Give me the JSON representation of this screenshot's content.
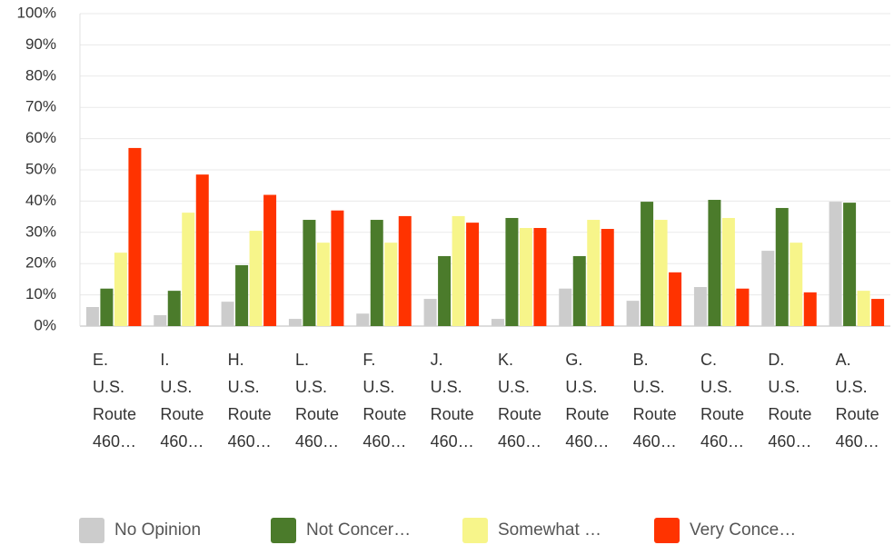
{
  "chart_data": {
    "type": "bar",
    "categories": [
      "E. U.S. Route 460…",
      "I. U.S. Route 460…",
      "H. U.S. Route 460…",
      "L. U.S. Route 460…",
      "F. U.S. Route 460…",
      "J. U.S. Route 460…",
      "K. U.S. Route 460…",
      "G. U.S. Route 460…",
      "B. U.S. Route 460…",
      "C. U.S. Route 460…",
      "D. U.S. Route 460…",
      "A. U.S. Route 460…"
    ],
    "series": [
      {
        "name": "No Opinion",
        "color": "#cccccc",
        "values": [
          6.1,
          3.5,
          7.8,
          2.3,
          4,
          8.7,
          2.3,
          12,
          8.1,
          12.5,
          24.1,
          39.8
        ]
      },
      {
        "name": "Not Concer…",
        "color": "#4b7b2b",
        "values": [
          12,
          11.3,
          19.5,
          34,
          34,
          22.4,
          34.6,
          22.4,
          39.8,
          40.4,
          37.8,
          39.5
        ]
      },
      {
        "name": "Somewhat …",
        "color": "#f7f58a",
        "values": [
          23.5,
          36.3,
          30.5,
          26.7,
          26.7,
          35.2,
          31.4,
          34,
          34,
          34.6,
          26.7,
          11.3
        ]
      },
      {
        "name": "Very Conce…",
        "color": "#ff3300",
        "values": [
          57,
          48.5,
          42,
          37,
          35.2,
          33.1,
          31.4,
          31.1,
          17.2,
          12,
          10.8,
          8.7
        ]
      }
    ],
    "ylim": [
      0,
      100
    ],
    "yticks": [
      {
        "value": 0,
        "label": "0%"
      },
      {
        "value": 10,
        "label": "10%"
      },
      {
        "value": 20,
        "label": "20%"
      },
      {
        "value": 30,
        "label": "30%"
      },
      {
        "value": 40,
        "label": "40%"
      },
      {
        "value": 50,
        "label": "50%"
      },
      {
        "value": 60,
        "label": "60%"
      },
      {
        "value": 70,
        "label": "70%"
      },
      {
        "value": 80,
        "label": "80%"
      },
      {
        "value": 90,
        "label": "90%"
      },
      {
        "value": 100,
        "label": "100%"
      }
    ],
    "grid": true
  }
}
